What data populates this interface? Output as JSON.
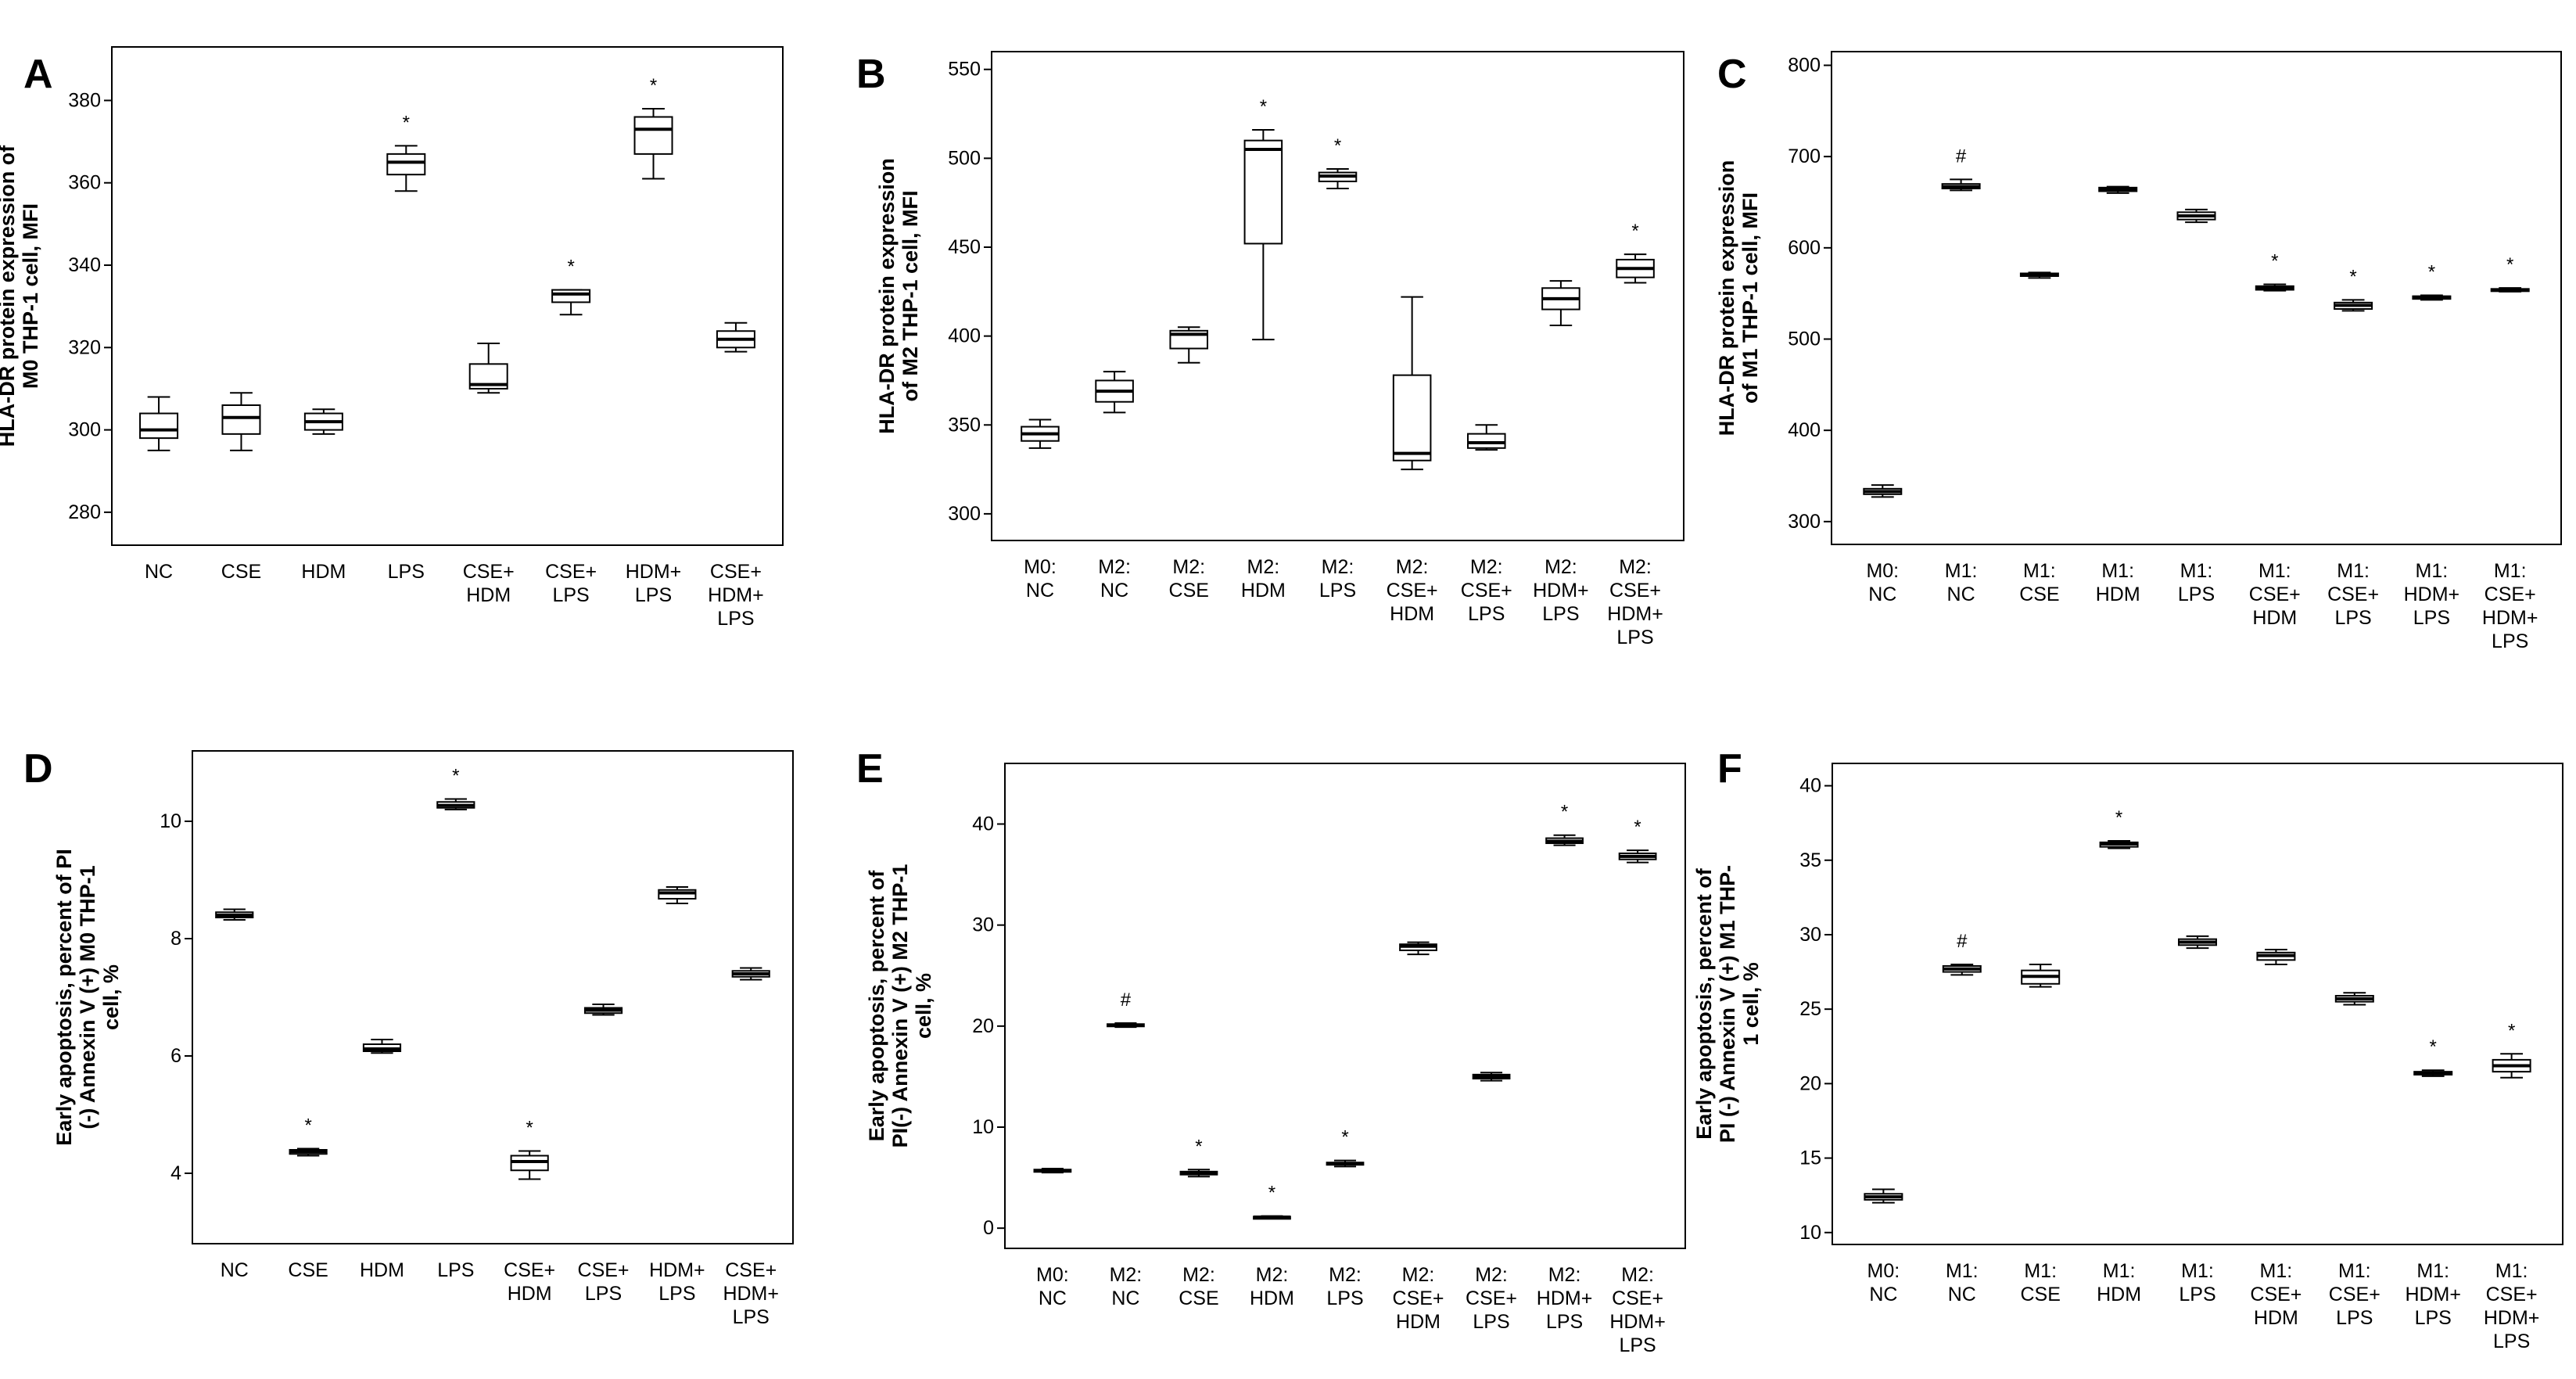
{
  "chart_data": [
    {
      "type": "boxplot",
      "panel": "A",
      "ylabel_lines": [
        "HLA-DR protein expression of",
        "M0 THP-1 cell, MFI"
      ],
      "ylim": [
        272,
        393
      ],
      "yticks": [
        280,
        300,
        320,
        340,
        360,
        380
      ],
      "categories": [
        [
          "NC"
        ],
        [
          "CSE"
        ],
        [
          "HDM"
        ],
        [
          "LPS"
        ],
        [
          "CSE+",
          "HDM"
        ],
        [
          "CSE+",
          "LPS"
        ],
        [
          "HDM+",
          "LPS"
        ],
        [
          "CSE+",
          "HDM+",
          "LPS"
        ]
      ],
      "boxes": [
        {
          "min": 295,
          "q1": 298,
          "median": 300,
          "q3": 304,
          "max": 308,
          "mark": ""
        },
        {
          "min": 295,
          "q1": 299,
          "median": 303,
          "q3": 306,
          "max": 309,
          "mark": ""
        },
        {
          "min": 299,
          "q1": 300,
          "median": 302,
          "q3": 304,
          "max": 305,
          "mark": ""
        },
        {
          "min": 358,
          "q1": 362,
          "median": 365,
          "q3": 367,
          "max": 369,
          "mark": "*"
        },
        {
          "min": 309,
          "q1": 310,
          "median": 311,
          "q3": 316,
          "max": 321,
          "mark": ""
        },
        {
          "min": 328,
          "q1": 331,
          "median": 333,
          "q3": 334,
          "max": 334,
          "mark": "*"
        },
        {
          "min": 361,
          "q1": 367,
          "median": 373,
          "q3": 376,
          "max": 378,
          "mark": "*"
        },
        {
          "min": 319,
          "q1": 320,
          "median": 322,
          "q3": 324,
          "max": 326,
          "mark": ""
        }
      ]
    },
    {
      "type": "boxplot",
      "panel": "B",
      "ylabel_lines": [
        "HLA-DR protein expression",
        "of M2 THP-1 cell, MFI"
      ],
      "ylim": [
        285,
        560
      ],
      "yticks": [
        300,
        350,
        400,
        450,
        500,
        550
      ],
      "categories": [
        [
          "M0:",
          "NC"
        ],
        [
          "M2:",
          "NC"
        ],
        [
          "M2:",
          "CSE"
        ],
        [
          "M2:",
          "HDM"
        ],
        [
          "M2:",
          "LPS"
        ],
        [
          "M2:",
          "CSE+",
          "HDM"
        ],
        [
          "M2:",
          "CSE+",
          "LPS"
        ],
        [
          "M2:",
          "HDM+",
          "LPS"
        ],
        [
          "M2:",
          "CSE+",
          "HDM+",
          "LPS"
        ]
      ],
      "boxes": [
        {
          "min": 337,
          "q1": 341,
          "median": 345,
          "q3": 349,
          "max": 353,
          "mark": ""
        },
        {
          "min": 357,
          "q1": 363,
          "median": 369,
          "q3": 375,
          "max": 380,
          "mark": ""
        },
        {
          "min": 385,
          "q1": 393,
          "median": 401,
          "q3": 403,
          "max": 405,
          "mark": ""
        },
        {
          "min": 398,
          "q1": 452,
          "median": 505,
          "q3": 510,
          "max": 516,
          "mark": "*"
        },
        {
          "min": 483,
          "q1": 487,
          "median": 490,
          "q3": 492,
          "max": 494,
          "mark": "*"
        },
        {
          "min": 325,
          "q1": 330,
          "median": 334,
          "q3": 378,
          "max": 422,
          "mark": ""
        },
        {
          "min": 336,
          "q1": 337,
          "median": 340,
          "q3": 345,
          "max": 350,
          "mark": ""
        },
        {
          "min": 406,
          "q1": 415,
          "median": 421,
          "q3": 427,
          "max": 431,
          "mark": ""
        },
        {
          "min": 430,
          "q1": 433,
          "median": 438,
          "q3": 443,
          "max": 446,
          "mark": "*"
        }
      ]
    },
    {
      "type": "boxplot",
      "panel": "C",
      "ylabel_lines": [
        "HLA-DR protein expression",
        "of M1 THP-1 cell, MFI"
      ],
      "ylim": [
        275,
        815
      ],
      "yticks": [
        300,
        400,
        500,
        600,
        700,
        800
      ],
      "categories": [
        [
          "M0:",
          "NC"
        ],
        [
          "M1:",
          "NC"
        ],
        [
          "M1:",
          "CSE"
        ],
        [
          "M1:",
          "HDM"
        ],
        [
          "M1:",
          "LPS"
        ],
        [
          "M1:",
          "CSE+",
          "HDM"
        ],
        [
          "M1:",
          "CSE+",
          "LPS"
        ],
        [
          "M1:",
          "HDM+",
          "LPS"
        ],
        [
          "M1:",
          "CSE+",
          "HDM+",
          "LPS"
        ]
      ],
      "boxes": [
        {
          "min": 327,
          "q1": 330,
          "median": 333,
          "q3": 336,
          "max": 340,
          "mark": ""
        },
        {
          "min": 663,
          "q1": 665,
          "median": 667,
          "q3": 670,
          "max": 675,
          "mark": "#"
        },
        {
          "min": 567,
          "q1": 569,
          "median": 570,
          "q3": 572,
          "max": 573,
          "mark": ""
        },
        {
          "min": 660,
          "q1": 662,
          "median": 664,
          "q3": 666,
          "max": 667,
          "mark": ""
        },
        {
          "min": 628,
          "q1": 631,
          "median": 635,
          "q3": 639,
          "max": 642,
          "mark": ""
        },
        {
          "min": 553,
          "q1": 554,
          "median": 556,
          "q3": 558,
          "max": 560,
          "mark": "*"
        },
        {
          "min": 531,
          "q1": 533,
          "median": 537,
          "q3": 540,
          "max": 543,
          "mark": "*"
        },
        {
          "min": 543,
          "q1": 544,
          "median": 546,
          "q3": 547,
          "max": 548,
          "mark": "*"
        },
        {
          "min": 552,
          "q1": 553,
          "median": 554,
          "q3": 555,
          "max": 556,
          "mark": "*"
        }
      ]
    },
    {
      "type": "boxplot",
      "panel": "D",
      "ylabel_lines": [
        "Early apoptosis, percent of PI",
        "(-) Annexin V (+) M0 THP-1",
        "cell, %"
      ],
      "ylim": [
        2.8,
        11.2
      ],
      "yticks": [
        4,
        6,
        8,
        10
      ],
      "categories": [
        [
          "NC"
        ],
        [
          "CSE"
        ],
        [
          "HDM"
        ],
        [
          "LPS"
        ],
        [
          "CSE+",
          "HDM"
        ],
        [
          "CSE+",
          "LPS"
        ],
        [
          "HDM+",
          "LPS"
        ],
        [
          "CSE+",
          "HDM+",
          "LPS"
        ]
      ],
      "boxes": [
        {
          "min": 8.32,
          "q1": 8.36,
          "median": 8.4,
          "q3": 8.45,
          "max": 8.5,
          "mark": ""
        },
        {
          "min": 4.3,
          "q1": 4.33,
          "median": 4.37,
          "q3": 4.4,
          "max": 4.42,
          "mark": "*"
        },
        {
          "min": 6.05,
          "q1": 6.08,
          "median": 6.12,
          "q3": 6.2,
          "max": 6.28,
          "mark": ""
        },
        {
          "min": 10.2,
          "q1": 10.23,
          "median": 10.27,
          "q3": 10.33,
          "max": 10.38,
          "mark": "*"
        },
        {
          "min": 3.9,
          "q1": 4.05,
          "median": 4.2,
          "q3": 4.3,
          "max": 4.38,
          "mark": "*"
        },
        {
          "min": 6.7,
          "q1": 6.73,
          "median": 6.78,
          "q3": 6.82,
          "max": 6.88,
          "mark": ""
        },
        {
          "min": 8.6,
          "q1": 8.68,
          "median": 8.78,
          "q3": 8.83,
          "max": 8.88,
          "mark": ""
        },
        {
          "min": 7.3,
          "q1": 7.35,
          "median": 7.4,
          "q3": 7.45,
          "max": 7.5,
          "mark": ""
        }
      ]
    },
    {
      "type": "boxplot",
      "panel": "E",
      "ylabel_lines": [
        "Early apoptosis, percent of",
        "PI(-) Annexin V (+) M2 THP-1",
        "cell, %"
      ],
      "ylim": [
        -2,
        46
      ],
      "yticks": [
        0,
        10,
        20,
        30,
        40
      ],
      "categories": [
        [
          "M0:",
          "NC"
        ],
        [
          "M2:",
          "NC"
        ],
        [
          "M2:",
          "CSE"
        ],
        [
          "M2:",
          "HDM"
        ],
        [
          "M2:",
          "LPS"
        ],
        [
          "M2:",
          "CSE+",
          "HDM"
        ],
        [
          "M2:",
          "CSE+",
          "LPS"
        ],
        [
          "M2:",
          "HDM+",
          "LPS"
        ],
        [
          "M2:",
          "CSE+",
          "HDM+",
          "LPS"
        ]
      ],
      "boxes": [
        {
          "min": 5.5,
          "q1": 5.6,
          "median": 5.7,
          "q3": 5.8,
          "max": 5.9,
          "mark": ""
        },
        {
          "min": 19.9,
          "q1": 20.0,
          "median": 20.1,
          "q3": 20.2,
          "max": 20.3,
          "mark": "#"
        },
        {
          "min": 5.1,
          "q1": 5.3,
          "median": 5.5,
          "q3": 5.6,
          "max": 5.8,
          "mark": "*"
        },
        {
          "min": 1.0,
          "q1": 1.05,
          "median": 1.1,
          "q3": 1.15,
          "max": 1.2,
          "mark": "*"
        },
        {
          "min": 6.1,
          "q1": 6.3,
          "median": 6.4,
          "q3": 6.5,
          "max": 6.7,
          "mark": "*"
        },
        {
          "min": 27.1,
          "q1": 27.5,
          "median": 27.9,
          "q3": 28.1,
          "max": 28.3,
          "mark": ""
        },
        {
          "min": 14.6,
          "q1": 14.8,
          "median": 15.0,
          "q3": 15.2,
          "max": 15.4,
          "mark": ""
        },
        {
          "min": 37.9,
          "q1": 38.1,
          "median": 38.3,
          "q3": 38.6,
          "max": 38.9,
          "mark": "*"
        },
        {
          "min": 36.2,
          "q1": 36.5,
          "median": 36.8,
          "q3": 37.1,
          "max": 37.4,
          "mark": "*"
        }
      ]
    },
    {
      "type": "boxplot",
      "panel": "F",
      "ylabel_lines": [
        "Early apoptosis, percent of",
        "PI (-) Annexin V (+) M1 THP-",
        "1 cell, %"
      ],
      "ylim": [
        9.2,
        41.5
      ],
      "yticks": [
        10,
        15,
        20,
        25,
        30,
        35,
        40
      ],
      "categories": [
        [
          "M0:",
          "NC"
        ],
        [
          "M1:",
          "NC"
        ],
        [
          "M1:",
          "CSE"
        ],
        [
          "M1:",
          "HDM"
        ],
        [
          "M1:",
          "LPS"
        ],
        [
          "M1:",
          "CSE+",
          "HDM"
        ],
        [
          "M1:",
          "CSE+",
          "LPS"
        ],
        [
          "M1:",
          "HDM+",
          "LPS"
        ],
        [
          "M1:",
          "CSE+",
          "HDM+",
          "LPS"
        ]
      ],
      "boxes": [
        {
          "min": 12.0,
          "q1": 12.2,
          "median": 12.4,
          "q3": 12.6,
          "max": 12.9,
          "mark": ""
        },
        {
          "min": 27.3,
          "q1": 27.5,
          "median": 27.7,
          "q3": 27.9,
          "max": 28.0,
          "mark": "#"
        },
        {
          "min": 26.5,
          "q1": 26.7,
          "median": 27.2,
          "q3": 27.6,
          "max": 28.0,
          "mark": ""
        },
        {
          "min": 35.8,
          "q1": 35.9,
          "median": 36.1,
          "q3": 36.2,
          "max": 36.3,
          "mark": "*"
        },
        {
          "min": 29.1,
          "q1": 29.3,
          "median": 29.5,
          "q3": 29.7,
          "max": 29.9,
          "mark": ""
        },
        {
          "min": 28.0,
          "q1": 28.3,
          "median": 28.6,
          "q3": 28.8,
          "max": 29.0,
          "mark": ""
        },
        {
          "min": 25.3,
          "q1": 25.5,
          "median": 25.7,
          "q3": 25.9,
          "max": 26.1,
          "mark": ""
        },
        {
          "min": 20.5,
          "q1": 20.6,
          "median": 20.7,
          "q3": 20.8,
          "max": 20.9,
          "mark": "*"
        },
        {
          "min": 20.4,
          "q1": 20.8,
          "median": 21.2,
          "q3": 21.6,
          "max": 22.0,
          "mark": "*"
        }
      ]
    }
  ]
}
